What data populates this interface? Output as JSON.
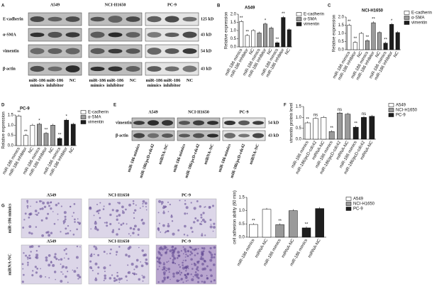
{
  "panels": [
    "A",
    "B",
    "C",
    "D",
    "E",
    "F",
    "G"
  ],
  "blot_a": {
    "columns": [
      "A549",
      "NCI-H1650",
      "PC-9"
    ],
    "rows": [
      "E-cadherin",
      "α-SMA",
      "vimentin",
      "β-actin"
    ],
    "sizes": [
      "125 kD",
      "43 kD",
      "54 kD",
      "43 kD"
    ],
    "lanes": [
      "miR-186 mimics",
      "miR-186 inhibitor",
      "NC"
    ]
  },
  "blot_e": {
    "columns": [
      "A549",
      "NCI-H1650",
      "PC-9"
    ],
    "rows": [
      "vimentin",
      "β-actin"
    ],
    "sizes": [
      "54 kD",
      "43 kD"
    ],
    "lanes": [
      "miR-186 mimics",
      "miR-186/pcD-cdc42",
      "miRNA-NC"
    ]
  },
  "micrographs": {
    "columns": [
      "A549",
      "NCI-H1650",
      "PC-9"
    ],
    "rows": [
      "miR-186 mimics",
      "miRNA-NC"
    ]
  },
  "chart_data": [
    {
      "type": "bar",
      "title": "A549",
      "ylabel": "Relative expression",
      "categories": [
        "miR-186 mimics",
        "miR-186 inhibitor",
        "NC",
        "miR-186 mimics",
        "miR-186 inhibitor",
        "NC",
        "miR-186 mimics",
        "miR-186 inhibitor",
        "NC"
      ],
      "series": [
        {
          "name": "E-cadherin",
          "color": "#ffffff",
          "values": [
            1.55,
            0.7,
            1.0,
            null,
            null,
            null,
            null,
            null,
            null
          ],
          "sig": [
            "**",
            "**",
            null,
            null,
            null,
            null,
            null,
            null,
            null
          ]
        },
        {
          "name": "α-SMA",
          "color": "#9a9a9a",
          "values": [
            null,
            null,
            null,
            0.85,
            1.4,
            1.15,
            null,
            null,
            null
          ],
          "sig": [
            null,
            null,
            null,
            null,
            "*",
            null,
            null,
            null,
            null
          ]
        },
        {
          "name": "vimentin",
          "color": "#1e1e1e",
          "values": [
            null,
            null,
            null,
            null,
            null,
            null,
            0.25,
            1.8,
            1.05
          ],
          "sig": [
            null,
            null,
            null,
            null,
            null,
            null,
            "**",
            "**",
            null
          ]
        }
      ],
      "ylim": [
        0,
        2
      ],
      "yticks": [
        {
          "value": 0,
          "label": "0.0"
        },
        {
          "value": 0.5,
          "label": "0.5"
        },
        {
          "value": 1,
          "label": "1.0"
        },
        {
          "value": 1.5,
          "label": "1.5"
        },
        {
          "value": 2,
          "label": "2.0"
        }
      ]
    },
    {
      "type": "bar",
      "title": "NCI-H1650",
      "ylabel": "Relative expression",
      "categories": [
        "miR-186 mimics",
        "miR-186 inhibitor",
        "NC",
        "miR-186 mimics",
        "miR-186 inhibitor",
        "NC",
        "miR-186 mimics",
        "miR-186 inhibitor",
        "NC"
      ],
      "series": [
        {
          "name": "E-cadherin",
          "color": "#ffffff",
          "values": [
            1.5,
            0.45,
            1.0,
            null,
            null,
            null,
            null,
            null,
            null
          ],
          "sig": [
            "**",
            "**",
            null,
            null,
            null,
            null,
            null,
            null,
            null
          ]
        },
        {
          "name": "α-SMA",
          "color": "#9a9a9a",
          "values": [
            null,
            null,
            null,
            0.55,
            1.65,
            1.05,
            null,
            null,
            null
          ],
          "sig": [
            null,
            null,
            null,
            "**",
            "**",
            null,
            null,
            null,
            null
          ]
        },
        {
          "name": "vimentin",
          "color": "#1e1e1e",
          "values": [
            null,
            null,
            null,
            null,
            null,
            null,
            0.4,
            1.55,
            1.05
          ],
          "sig": [
            null,
            null,
            null,
            null,
            null,
            null,
            "**",
            "*",
            null
          ]
        }
      ],
      "ylim": [
        0,
        2
      ],
      "yticks": [
        {
          "value": 0,
          "label": "0.0"
        },
        {
          "value": 0.5,
          "label": "0.5"
        },
        {
          "value": 1,
          "label": "1.0"
        },
        {
          "value": 1.5,
          "label": "1.5"
        },
        {
          "value": 2,
          "label": "2.0"
        }
      ]
    },
    {
      "type": "bar",
      "title": "PC-9",
      "ylabel": "Relative expression",
      "categories": [
        "miR-186 mimics",
        "miR-186 inhibitor",
        "NC",
        "miR-186 mimics",
        "miR-186 inhibitor",
        "NC",
        "miR-186 mimics",
        "miR-186 inhibitor",
        "NC"
      ],
      "series": [
        {
          "name": "E-cadherin",
          "color": "#ffffff",
          "values": [
            1.45,
            0.5,
            1.0,
            null,
            null,
            null,
            null,
            null,
            null
          ],
          "sig": [
            "**",
            "**",
            null,
            null,
            null,
            null,
            null,
            null,
            null
          ]
        },
        {
          "name": "α-SMA",
          "color": "#9a9a9a",
          "values": [
            null,
            null,
            null,
            1.05,
            0.6,
            1.0,
            null,
            null,
            null
          ],
          "sig": [
            null,
            null,
            null,
            "*",
            "**",
            null,
            null,
            null,
            null
          ]
        },
        {
          "name": "vimentin",
          "color": "#1e1e1e",
          "values": [
            null,
            null,
            null,
            null,
            null,
            null,
            0.35,
            1.25,
            1.05
          ],
          "sig": [
            null,
            null,
            null,
            null,
            null,
            null,
            "**",
            "*",
            null
          ]
        }
      ],
      "ylim": [
        0,
        1.5
      ],
      "yticks": [
        {
          "value": 0,
          "label": "0.0"
        },
        {
          "value": 0.5,
          "label": "0.5"
        },
        {
          "value": 1,
          "label": "1.0"
        },
        {
          "value": 1.5,
          "label": "1.5"
        }
      ]
    },
    {
      "type": "bar",
      "ylabel": "vimentin protein level",
      "categories": [
        "miR-186 mimics",
        "miR-186/pcD-cdc42",
        "miRNA-NC",
        "miR-186 mimics",
        "miR-186/pcD-cdc42",
        "miRNA-NC",
        "miR-186 mimics",
        "miR-186/pcD-cdc42",
        "miRNA-NC"
      ],
      "series": [
        {
          "name": "A549",
          "color": "#ffffff",
          "values": [
            0.75,
            0.95,
            1.0,
            null,
            null,
            null,
            null,
            null,
            null
          ],
          "sig": [
            "**",
            "ns",
            null,
            null,
            null,
            null,
            null,
            null,
            null
          ]
        },
        {
          "name": "NCI-H1650",
          "color": "#9a9a9a",
          "values": [
            null,
            null,
            null,
            0.35,
            1.2,
            1.15,
            null,
            null,
            null
          ],
          "sig": [
            null,
            null,
            null,
            "**",
            "ns",
            null,
            null,
            null,
            null
          ]
        },
        {
          "name": "PC-9",
          "color": "#1e1e1e",
          "values": [
            null,
            null,
            null,
            null,
            null,
            null,
            0.55,
            1.0,
            1.05
          ],
          "sig": [
            null,
            null,
            null,
            null,
            null,
            null,
            "**",
            "ns",
            null
          ]
        }
      ],
      "ylim": [
        0,
        1.5
      ],
      "yticks": [
        {
          "value": 0,
          "label": "0.0"
        },
        {
          "value": 0.5,
          "label": "0.5"
        },
        {
          "value": 1,
          "label": "1.0"
        },
        {
          "value": 1.5,
          "label": "1.5"
        }
      ]
    },
    {
      "type": "bar",
      "ylabel": "cell adhesion ability (60 min)",
      "categories": [
        "miR-186 mimics",
        "miRNA-NC",
        "miR-186 mimics",
        "miRNA-NC",
        "miR-186 mimics",
        "miRNA-NC"
      ],
      "series": [
        {
          "name": "A549",
          "color": "#ffffff",
          "values": [
            0.48,
            1.05,
            null,
            null,
            null,
            null
          ],
          "sig": [
            "**",
            null,
            null,
            null,
            null,
            null
          ]
        },
        {
          "name": "NCI-H1650",
          "color": "#9a9a9a",
          "values": [
            null,
            null,
            0.47,
            1.0,
            null,
            null
          ],
          "sig": [
            null,
            null,
            "**",
            null,
            null,
            null
          ]
        },
        {
          "name": "PC-9",
          "color": "#1e1e1e",
          "values": [
            null,
            null,
            null,
            null,
            0.35,
            1.08
          ],
          "sig": [
            null,
            null,
            null,
            null,
            "**",
            null
          ]
        }
      ],
      "ylim": [
        0,
        1.5
      ],
      "yticks": [
        {
          "value": 0,
          "label": "0.0"
        },
        {
          "value": 0.5,
          "label": "0.5"
        },
        {
          "value": 1,
          "label": "1.0"
        },
        {
          "value": 1.5,
          "label": "1.5"
        }
      ]
    }
  ]
}
